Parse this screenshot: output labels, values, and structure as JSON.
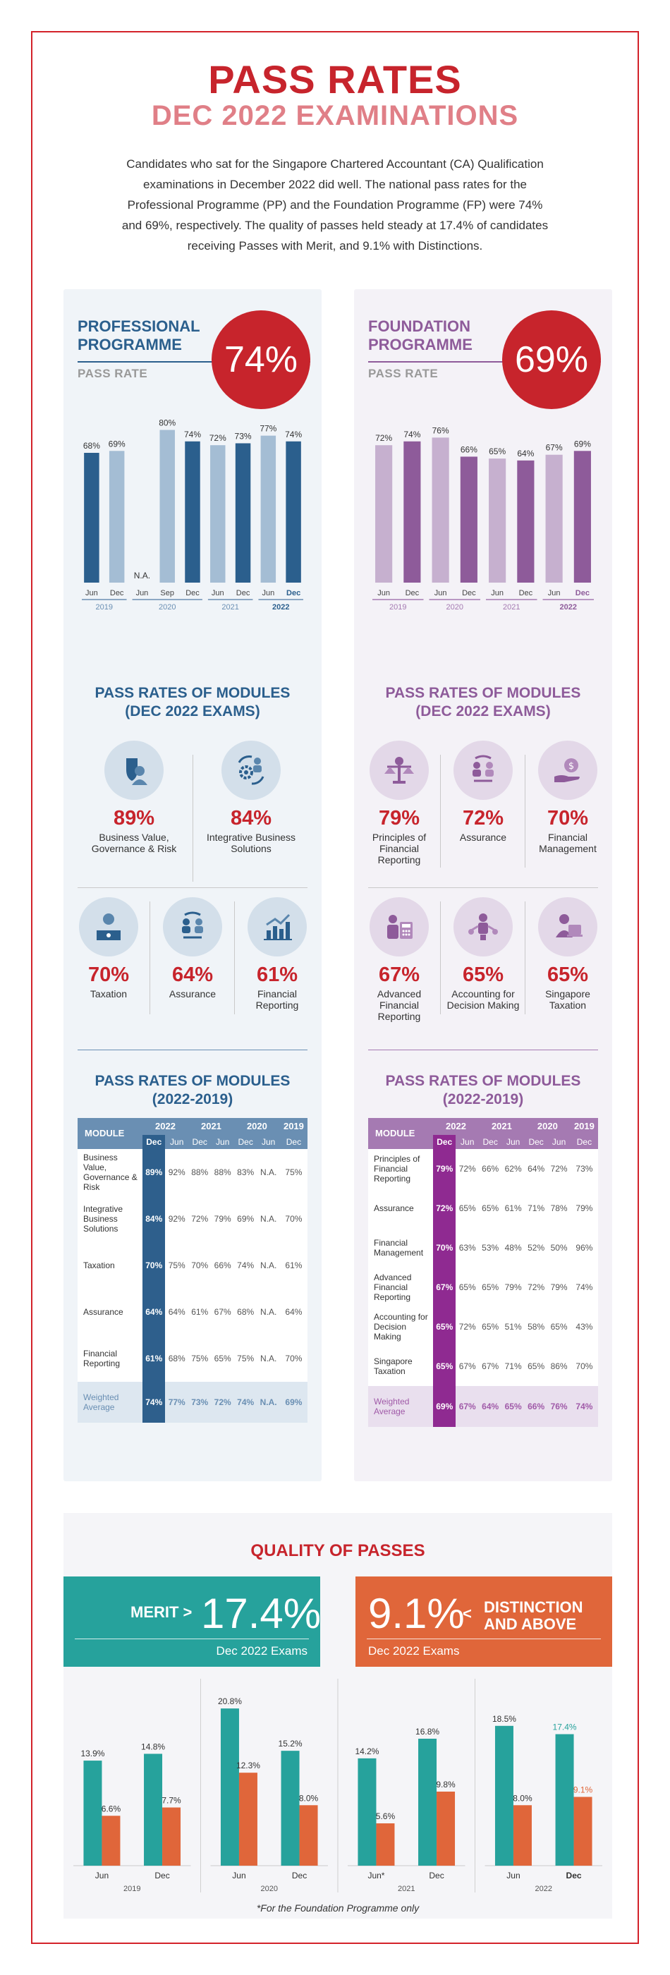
{
  "header": {
    "title": "PASS RATES",
    "subtitle": "DEC 2022 EXAMINATIONS",
    "intro": "Candidates who sat for the Singapore Chartered Accountant (CA) Qualification examinations in December 2022 did well. The national pass rates for the Professional Programme (PP) and the Foundation Programme (FP) were 74% and 69%, respectively. The quality of passes held steady at 17.4% of candidates receiving Passes with Merit, and 9.1% with Distinctions."
  },
  "pp": {
    "name_line1": "PROFESSIONAL",
    "name_line2": "PROGRAMME",
    "label": "PASS RATE",
    "overall": "74%",
    "modules_title1": "PASS RATES OF MODULES",
    "modules_title2": "(DEC 2022 EXAMS)",
    "modules": [
      {
        "pct": "89%",
        "name": "Business Value, Governance & Risk"
      },
      {
        "pct": "84%",
        "name": "Integrative Business Solutions"
      },
      {
        "pct": "70%",
        "name": "Taxation"
      },
      {
        "pct": "64%",
        "name": "Assurance"
      },
      {
        "pct": "61%",
        "name": "Financial Reporting"
      }
    ],
    "table_title1": "PASS RATES OF MODULES",
    "table_title2": "(2022-2019)",
    "table_header": {
      "module": "MODULE",
      "y2022": "2022",
      "y2021": "2021",
      "y2020": "2020",
      "y2019": "2019",
      "dec": "Dec",
      "jun": "Jun"
    },
    "table_rows": [
      {
        "name": "Business Value, Governance & Risk",
        "v": [
          "89%",
          "92%",
          "88%",
          "88%",
          "83%",
          "N.A.",
          "75%"
        ]
      },
      {
        "name": "Integrative Business Solutions",
        "v": [
          "84%",
          "92%",
          "72%",
          "79%",
          "69%",
          "N.A.",
          "70%"
        ]
      },
      {
        "name": "Taxation",
        "v": [
          "70%",
          "75%",
          "70%",
          "66%",
          "74%",
          "N.A.",
          "61%"
        ]
      },
      {
        "name": "Assurance",
        "v": [
          "64%",
          "64%",
          "61%",
          "67%",
          "68%",
          "N.A.",
          "64%"
        ]
      },
      {
        "name": "Financial Reporting",
        "v": [
          "61%",
          "68%",
          "75%",
          "65%",
          "75%",
          "N.A.",
          "70%"
        ]
      }
    ],
    "table_avg": {
      "name": "Weighted Average",
      "v": [
        "74%",
        "77%",
        "73%",
        "72%",
        "74%",
        "N.A.",
        "69%"
      ]
    }
  },
  "fp": {
    "name_line1": "FOUNDATION",
    "name_line2": "PROGRAMME",
    "label": "PASS RATE",
    "overall": "69%",
    "modules_title1": "PASS RATES OF MODULES",
    "modules_title2": "(DEC 2022 EXAMS)",
    "modules": [
      {
        "pct": "79%",
        "name": "Principles of Financial Reporting"
      },
      {
        "pct": "72%",
        "name": "Assurance"
      },
      {
        "pct": "70%",
        "name": "Financial Management"
      },
      {
        "pct": "67%",
        "name": "Advanced Financial Reporting"
      },
      {
        "pct": "65%",
        "name": "Accounting for Decision Making"
      },
      {
        "pct": "65%",
        "name": "Singapore Taxation"
      }
    ],
    "table_title1": "PASS RATES OF MODULES",
    "table_title2": "(2022-2019)",
    "table_header": {
      "module": "MODULE",
      "y2022": "2022",
      "y2021": "2021",
      "y2020": "2020",
      "y2019": "2019",
      "dec": "Dec",
      "jun": "Jun"
    },
    "table_rows": [
      {
        "name": "Principles of Financial Reporting",
        "v": [
          "79%",
          "72%",
          "66%",
          "62%",
          "64%",
          "72%",
          "73%"
        ]
      },
      {
        "name": "Assurance",
        "v": [
          "72%",
          "65%",
          "65%",
          "61%",
          "71%",
          "78%",
          "79%"
        ]
      },
      {
        "name": "Financial Management",
        "v": [
          "70%",
          "63%",
          "53%",
          "48%",
          "52%",
          "50%",
          "96%"
        ]
      },
      {
        "name": "Advanced Financial Reporting",
        "v": [
          "67%",
          "65%",
          "65%",
          "79%",
          "72%",
          "79%",
          "74%"
        ]
      },
      {
        "name": "Accounting for Decision Making",
        "v": [
          "65%",
          "72%",
          "65%",
          "51%",
          "58%",
          "65%",
          "43%"
        ]
      },
      {
        "name": "Singapore Taxation",
        "v": [
          "65%",
          "67%",
          "67%",
          "71%",
          "65%",
          "86%",
          "70%"
        ]
      }
    ],
    "table_avg": {
      "name": "Weighted Average",
      "v": [
        "69%",
        "67%",
        "64%",
        "65%",
        "66%",
        "76%",
        "74%"
      ]
    }
  },
  "quality": {
    "title": "QUALITY OF PASSES",
    "merit_label": "MERIT >",
    "merit_value": "17.4%",
    "merit_sub": "Dec 2022 Exams",
    "dist_value": "9.1%",
    "dist_lt": "<",
    "dist_label1": "DISTINCTION",
    "dist_label2": "AND ABOVE",
    "dist_sub": "Dec 2022 Exams",
    "footnote": "*For the Foundation Programme only"
  },
  "chart_data": [
    {
      "type": "bar",
      "title": "Professional Programme Pass Rate",
      "categories": [
        "Jun",
        "Dec",
        "Jun",
        "Sep",
        "Dec",
        "Jun",
        "Dec",
        "Jun",
        "Dec"
      ],
      "years": [
        {
          "label": "2019",
          "from": 0,
          "to": 1
        },
        {
          "label": "2020",
          "from": 2,
          "to": 4
        },
        {
          "label": "2021",
          "from": 5,
          "to": 6
        },
        {
          "label": "2022",
          "from": 7,
          "to": 8
        }
      ],
      "values": [
        68,
        69,
        null,
        80,
        74,
        72,
        73,
        77,
        74
      ],
      "labels": [
        "68%",
        "69%",
        "N.A.",
        "80%",
        "74%",
        "72%",
        "73%",
        "77%",
        "74%"
      ],
      "shade": [
        "dark",
        "light",
        "na",
        "light",
        "dark",
        "light",
        "dark",
        "light",
        "dark"
      ],
      "colors": {
        "dark": "#2b5f8d",
        "light": "#a4bdd4",
        "axis": "#6a8fb3"
      },
      "ylim": [
        0,
        100
      ]
    },
    {
      "type": "bar",
      "title": "Foundation Programme Pass Rate",
      "categories": [
        "Jun",
        "Dec",
        "Jun",
        "Dec",
        "Jun",
        "Dec",
        "Jun",
        "Dec"
      ],
      "years": [
        {
          "label": "2019",
          "from": 0,
          "to": 1
        },
        {
          "label": "2020",
          "from": 2,
          "to": 3
        },
        {
          "label": "2021",
          "from": 4,
          "to": 5
        },
        {
          "label": "2022",
          "from": 6,
          "to": 7
        }
      ],
      "values": [
        72,
        74,
        76,
        66,
        65,
        64,
        67,
        69
      ],
      "labels": [
        "72%",
        "74%",
        "76%",
        "66%",
        "65%",
        "64%",
        "67%",
        "69%"
      ],
      "shade": [
        "light",
        "dark",
        "light",
        "dark",
        "light",
        "dark",
        "light",
        "dark"
      ],
      "colors": {
        "dark": "#8e5b9a",
        "light": "#c6b0cf",
        "axis": "#a57ab2"
      },
      "ylim": [
        0,
        100
      ]
    },
    {
      "type": "bar",
      "title": "Quality of Passes",
      "categories": [
        "Jun",
        "Dec",
        "Jun",
        "Dec",
        "Jun*",
        "Dec",
        "Jun",
        "Dec"
      ],
      "years": [
        {
          "label": "2019",
          "from": 0,
          "to": 1
        },
        {
          "label": "2020",
          "from": 2,
          "to": 3
        },
        {
          "label": "2021",
          "from": 4,
          "to": 5
        },
        {
          "label": "2022",
          "from": 6,
          "to": 7
        }
      ],
      "series": [
        {
          "name": "Merit",
          "color": "#26a29c",
          "values": [
            13.9,
            14.8,
            20.8,
            15.2,
            14.2,
            16.8,
            18.5,
            17.4
          ],
          "labels": [
            "13.9%",
            "14.8%",
            "20.8%",
            "15.2%",
            "14.2%",
            "16.8%",
            "18.5%",
            "17.4%"
          ]
        },
        {
          "name": "Distinction and above",
          "color": "#e0663a",
          "values": [
            6.6,
            7.7,
            12.3,
            8.0,
            5.6,
            9.8,
            8.0,
            9.1
          ],
          "labels": [
            "6.6%",
            "7.7%",
            "12.3%",
            "8.0%",
            "5.6%",
            "9.8%",
            "8.0%",
            "9.1%"
          ]
        }
      ],
      "ylim": [
        0,
        22
      ]
    }
  ]
}
